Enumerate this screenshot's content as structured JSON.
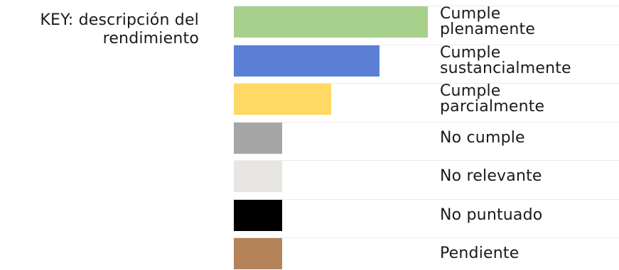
{
  "key_title": {
    "line1": "KEY: descripción del",
    "line2": "rendimiento"
  },
  "legend": [
    {
      "lines": [
        "Cumple",
        "plenamente"
      ],
      "color": "#a8d08d",
      "relative_length": 1.0
    },
    {
      "lines": [
        "Cumple",
        "sustancialmente"
      ],
      "color": "#5b80d5",
      "relative_length": 0.75
    },
    {
      "lines": [
        "Cumple",
        "parcialmente"
      ],
      "color": "#fed966",
      "relative_length": 0.5
    },
    {
      "lines": [
        "No cumple"
      ],
      "color": "#a6a6a6",
      "relative_length": 0.25
    },
    {
      "lines": [
        "No relevante"
      ],
      "color": "#e8e6e2",
      "relative_length": 0.25
    },
    {
      "lines": [
        "No puntuado"
      ],
      "color": "#000000",
      "relative_length": 0.25
    },
    {
      "lines": [
        "Pendiente"
      ],
      "color": "#b4835a",
      "relative_length": 0.25
    }
  ]
}
